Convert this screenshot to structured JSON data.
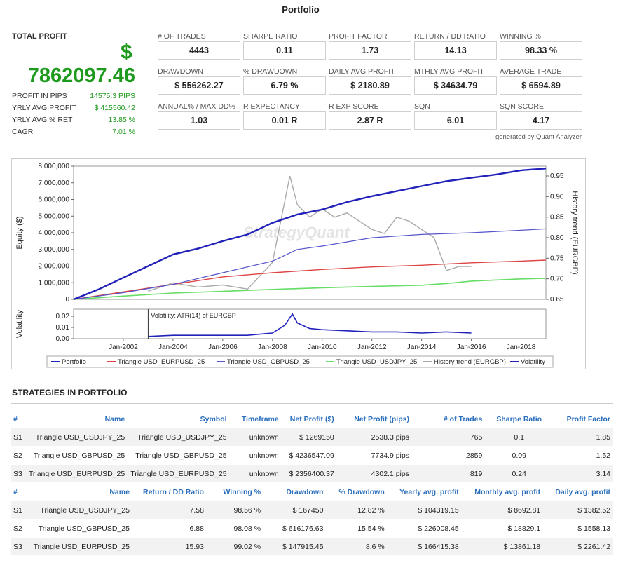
{
  "page_title": "Portfolio",
  "total_profit": {
    "label": "TOTAL PROFIT",
    "currency": "$",
    "value": "7862097.46"
  },
  "subrows": [
    {
      "label": "PROFIT IN PIPS",
      "value": "14575.3 PIPS"
    },
    {
      "label": "YRLY AVG PROFIT",
      "value": "$ 415560.42"
    },
    {
      "label": "YRLY AVG % RET",
      "value": "13.85 %"
    },
    {
      "label": "CAGR",
      "value": "7.01 %"
    }
  ],
  "metrics": [
    {
      "label": "# OF TRADES",
      "value": "4443"
    },
    {
      "label": "SHARPE RATIO",
      "value": "0.11"
    },
    {
      "label": "PROFIT FACTOR",
      "value": "1.73"
    },
    {
      "label": "RETURN / DD RATIO",
      "value": "14.13"
    },
    {
      "label": "WINNING %",
      "value": "98.33 %"
    },
    {
      "label": "DRAWDOWN",
      "value": "$ 556262.27"
    },
    {
      "label": "% DRAWDOWN",
      "value": "6.79 %"
    },
    {
      "label": "DAILY AVG PROFIT",
      "value": "$ 2180.89"
    },
    {
      "label": "MTHLY AVG PROFIT",
      "value": "$ 34634.79"
    },
    {
      "label": "AVERAGE TRADE",
      "value": "$ 6594.89"
    },
    {
      "label": "ANNUAL% / MAX DD%",
      "value": "1.03"
    },
    {
      "label": "R EXPECTANCY",
      "value": "0.01 R"
    },
    {
      "label": "R EXP SCORE",
      "value": "2.87 R"
    },
    {
      "label": "SQN",
      "value": "6.01"
    },
    {
      "label": "SQN SCORE",
      "value": "4.17"
    }
  ],
  "generated_by": "generated by Quant Analyzer",
  "chart_data": {
    "type": "line",
    "ylabel_left": "Equity ($)",
    "ylabel_right": "History trend (EURGBP)",
    "left_ticks": [
      "8,000,000",
      "7,000,000",
      "6,000,000",
      "5,000,000",
      "4,000,000",
      "3,000,000",
      "2,000,000",
      "1,000,000",
      "0"
    ],
    "right_ticks": [
      "0.95",
      "0.90",
      "0.85",
      "0.80",
      "0.75",
      "0.70",
      "0.65"
    ],
    "x_ticks": [
      "Jan-2002",
      "Jan-2004",
      "Jan-2006",
      "Jan-2008",
      "Jan-2010",
      "Jan-2012",
      "Jan-2014",
      "Jan-2016",
      "Jan-2018"
    ],
    "watermark": "StrategyQuant",
    "colors": {
      "portfolio": "#2222bb",
      "eurusd": "#dd4444",
      "gbpusd": "#5555cc",
      "usdjpy": "#66dd66",
      "trend": "#aaaaaa",
      "volatility": "#2222bb"
    },
    "series": [
      {
        "name": "Portfolio",
        "x": [
          2000.0,
          2001.0,
          2002.0,
          2003.0,
          2004.0,
          2005.0,
          2006.0,
          2007.0,
          2008.0,
          2009.0,
          2010.0,
          2011.0,
          2012.0,
          2013.0,
          2014.0,
          2015.0,
          2016.0,
          2017.0,
          2018.0,
          2019.0
        ],
        "values": [
          0,
          600000,
          1300000,
          2000000,
          2700000,
          3050000,
          3500000,
          3900000,
          4600000,
          5100000,
          5400000,
          5850000,
          6200000,
          6500000,
          6800000,
          7100000,
          7300000,
          7500000,
          7750000,
          7862097
        ]
      },
      {
        "name": "Triangle USD_EURPUSD_25",
        "x": [
          2000.0,
          2002.0,
          2004.0,
          2006.0,
          2008.0,
          2010.0,
          2012.0,
          2014.0,
          2016.0,
          2018.0,
          2019.0
        ],
        "values": [
          0,
          450000,
          900000,
          1350000,
          1600000,
          1800000,
          1950000,
          2050000,
          2200000,
          2300000,
          2356400
        ]
      },
      {
        "name": "Triangle USD_GBPUSD_25",
        "x": [
          2000.0,
          2002.0,
          2004.0,
          2006.0,
          2008.0,
          2009.0,
          2010.0,
          2012.0,
          2014.0,
          2016.0,
          2018.0,
          2019.0
        ],
        "values": [
          0,
          400000,
          900000,
          1600000,
          2300000,
          3000000,
          3200000,
          3700000,
          3900000,
          4000000,
          4150000,
          4236547
        ]
      },
      {
        "name": "Triangle USD_USDJPY_25",
        "x": [
          2000.0,
          2002.0,
          2004.0,
          2006.0,
          2008.0,
          2010.0,
          2012.0,
          2014.0,
          2015.0,
          2016.0,
          2018.0,
          2019.0
        ],
        "values": [
          0,
          200000,
          380000,
          480000,
          600000,
          700000,
          780000,
          850000,
          950000,
          1100000,
          1230000,
          1269150
        ]
      },
      {
        "name": "History trend (EURGBP)",
        "x": [
          2003.0,
          2004.0,
          2005.0,
          2006.0,
          2007.0,
          2008.0,
          2008.7,
          2009.0,
          2009.5,
          2010.0,
          2010.5,
          2011.0,
          2011.5,
          2012.0,
          2012.5,
          2013.0,
          2013.5,
          2014.0,
          2014.5,
          2015.0,
          2015.5,
          2016.0
        ],
        "values": [
          0.67,
          0.69,
          0.68,
          0.685,
          0.675,
          0.74,
          0.95,
          0.88,
          0.85,
          0.87,
          0.85,
          0.86,
          0.84,
          0.82,
          0.81,
          0.85,
          0.84,
          0.82,
          0.8,
          0.72,
          0.73,
          0.73
        ]
      },
      {
        "name": "Volatility",
        "x": [
          2003.0,
          2004.0,
          2005.0,
          2006.0,
          2007.0,
          2008.0,
          2008.5,
          2008.8,
          2009.0,
          2009.5,
          2010.0,
          2011.0,
          2012.0,
          2013.0,
          2014.0,
          2015.0,
          2016.0
        ],
        "values": [
          0.002,
          0.003,
          0.003,
          0.003,
          0.003,
          0.005,
          0.012,
          0.022,
          0.014,
          0.009,
          0.008,
          0.007,
          0.006,
          0.006,
          0.005,
          0.006,
          0.005
        ]
      }
    ],
    "volatility_panel": {
      "ylabel": "Volatility",
      "ticks": [
        "0.02",
        "0.01",
        "0.00"
      ],
      "label": "Volatility: ATR(14) of EURGBP"
    },
    "legend": [
      "Portfolio",
      "Triangle USD_EURPUSD_25",
      "Triangle USD_GBPUSD_25",
      "Triangle USD_USDJPY_25",
      "History trend (EURGBP)",
      "Volatility"
    ]
  },
  "section_title": "STRATEGIES IN PORTFOLIO",
  "table1": {
    "headers": [
      "#",
      "Name",
      "Symbol",
      "Timeframe",
      "Net Profit ($)",
      "Net Profit (pips)",
      "# of Trades",
      "Sharpe Ratio",
      "Profit Factor"
    ],
    "rows": [
      [
        "S1",
        "Triangle USD_USDJPY_25",
        "Triangle USD_USDJPY_25",
        "unknown",
        "$ 1269150",
        "2538.3 pips",
        "765",
        "0.1",
        "1.85"
      ],
      [
        "S2",
        "Triangle USD_GBPUSD_25",
        "Triangle USD_GBPUSD_25",
        "unknown",
        "$ 4236547.09",
        "7734.9 pips",
        "2859",
        "0.09",
        "1.52"
      ],
      [
        "S3",
        "Triangle USD_EURPUSD_25",
        "Triangle USD_EURPUSD_25",
        "unknown",
        "$ 2356400.37",
        "4302.1 pips",
        "819",
        "0.24",
        "3.14"
      ]
    ]
  },
  "table2": {
    "headers": [
      "#",
      "Name",
      "Return / DD Ratio",
      "Winning %",
      "Drawdown",
      "% Drawdown",
      "Yearly avg. profit",
      "Monthly avg. profit",
      "Daily avg. profit"
    ],
    "rows": [
      [
        "S1",
        "Triangle USD_USDJPY_25",
        "7.58",
        "98.56 %",
        "$ 167450",
        "12.82 %",
        "$ 104319.15",
        "$ 8692.81",
        "$ 1382.52"
      ],
      [
        "S2",
        "Triangle USD_GBPUSD_25",
        "6.88",
        "98.08 %",
        "$ 616176.63",
        "15.54 %",
        "$ 226008.45",
        "$ 18829.1",
        "$ 1558.13"
      ],
      [
        "S3",
        "Triangle USD_EURPUSD_25",
        "15.93",
        "99.02 %",
        "$ 147915.45",
        "8.6 %",
        "$ 166415.38",
        "$ 13861.18",
        "$ 2261.42"
      ]
    ]
  }
}
